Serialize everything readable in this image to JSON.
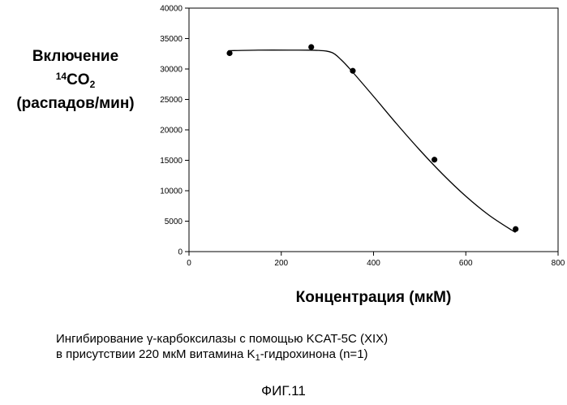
{
  "chart_data": {
    "type": "scatter",
    "ylabel": {
      "line1": "Включение",
      "sup": "14",
      "base": "CO",
      "sub": "2",
      "line3": "(распадов/мин)"
    },
    "xlabel": "Концентрация (мкМ)",
    "xlim": [
      0,
      800
    ],
    "ylim": [
      0,
      40000
    ],
    "xticks": [
      0,
      200,
      400,
      600,
      800
    ],
    "yticks": [
      0,
      5000,
      10000,
      15000,
      20000,
      25000,
      30000,
      35000,
      40000
    ],
    "points": [
      {
        "x": 88,
        "y": 32600
      },
      {
        "x": 265,
        "y": 33600
      },
      {
        "x": 355,
        "y": 29700
      },
      {
        "x": 532,
        "y": 15100
      },
      {
        "x": 708,
        "y": 3700
      }
    ],
    "fit_curve": [
      [
        85,
        33000
      ],
      [
        150,
        33100
      ],
      [
        220,
        33100
      ],
      [
        280,
        33050
      ],
      [
        310,
        32700
      ],
      [
        330,
        31500
      ],
      [
        350,
        29900
      ],
      [
        400,
        25500
      ],
      [
        450,
        21000
      ],
      [
        500,
        16700
      ],
      [
        550,
        12700
      ],
      [
        600,
        9100
      ],
      [
        650,
        6000
      ],
      [
        700,
        3500
      ],
      [
        708,
        3200
      ]
    ]
  },
  "caption": {
    "line1": "Ингибирование γ-карбоксилазы с помощью KCAT-5C (XIX)",
    "line2_pre": "в присутствии 220 мкМ витамина K",
    "line2_sub": "1",
    "line2_post": "-гидрохинона (n=1)"
  },
  "figure_label": "ФИГ.11"
}
